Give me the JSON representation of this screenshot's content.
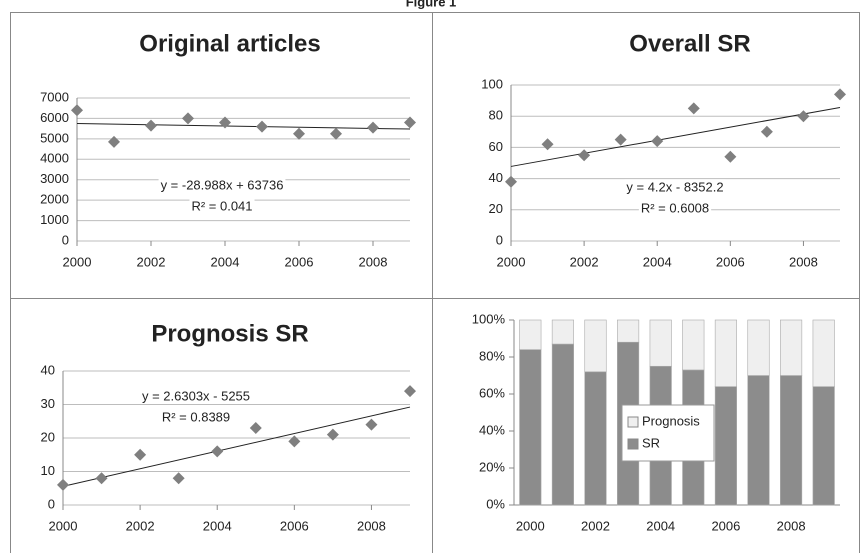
{
  "caption": "Figure 1",
  "chart_data": [
    {
      "type": "scatter",
      "title": "Original articles",
      "x": [
        2000,
        2001,
        2002,
        2003,
        2004,
        2005,
        2006,
        2007,
        2008,
        2009
      ],
      "values": [
        6400,
        4850,
        5650,
        6000,
        5800,
        5600,
        5250,
        5250,
        5550,
        5800
      ],
      "color": "#7f7f7f",
      "xlim": [
        2000,
        2009
      ],
      "xticks": [
        2000,
        2002,
        2004,
        2006,
        2008
      ],
      "ylim": [
        0,
        7000
      ],
      "yticks": [
        0,
        1000,
        2000,
        3000,
        4000,
        5000,
        6000,
        7000
      ],
      "grid": true,
      "annotations": [
        "y = -28.988x + 63736",
        "R² = 0.041"
      ]
    },
    {
      "type": "scatter",
      "title": "Overall SR",
      "x": [
        2000,
        2001,
        2002,
        2003,
        2004,
        2005,
        2006,
        2007,
        2008,
        2009
      ],
      "values": [
        38,
        62,
        55,
        65,
        64,
        85,
        54,
        70,
        80,
        94
      ],
      "color": "#7f7f7f",
      "xlim": [
        2000,
        2009
      ],
      "xticks": [
        2000,
        2002,
        2004,
        2006,
        2008
      ],
      "ylim": [
        0,
        100
      ],
      "yticks": [
        0,
        20,
        40,
        60,
        80,
        100
      ],
      "grid": true,
      "annotations": [
        "y = 4.2x - 8352.2",
        "R² = 0.6008"
      ]
    },
    {
      "type": "scatter",
      "title": "Prognosis SR",
      "x": [
        2000,
        2001,
        2002,
        2003,
        2004,
        2005,
        2006,
        2007,
        2008,
        2009
      ],
      "values": [
        6,
        8,
        15,
        8,
        16,
        23,
        19,
        21,
        24,
        34
      ],
      "color": "#7f7f7f",
      "xlim": [
        2000,
        2009
      ],
      "xticks": [
        2000,
        2002,
        2004,
        2006,
        2008
      ],
      "ylim": [
        0,
        40
      ],
      "yticks": [
        0,
        10,
        20,
        30,
        40
      ],
      "grid": true,
      "annotations": [
        "y = 2.6303x - 5255",
        "R² = 0.8389"
      ]
    },
    {
      "type": "stacked_bar",
      "categories": [
        "2000",
        null,
        "2002",
        null,
        "2004",
        null,
        "2006",
        null,
        "2008",
        null
      ],
      "series": [
        {
          "name": "SR",
          "color": "#8c8c8c",
          "values": [
            84,
            87,
            72,
            88,
            75,
            73,
            64,
            70,
            70,
            64
          ]
        },
        {
          "name": "Prognosis",
          "color": "#efefef",
          "values": [
            16,
            13,
            28,
            12,
            25,
            27,
            36,
            30,
            30,
            36
          ]
        }
      ],
      "ylim": [
        0,
        100
      ],
      "yticks": [
        {
          "value": 0,
          "label": "0%"
        },
        {
          "value": 20,
          "label": "20%"
        },
        {
          "value": 40,
          "label": "40%"
        },
        {
          "value": 60,
          "label": "60%"
        },
        {
          "value": 80,
          "label": "80%"
        },
        {
          "value": 100,
          "label": "100%"
        }
      ],
      "grid": false
    }
  ]
}
